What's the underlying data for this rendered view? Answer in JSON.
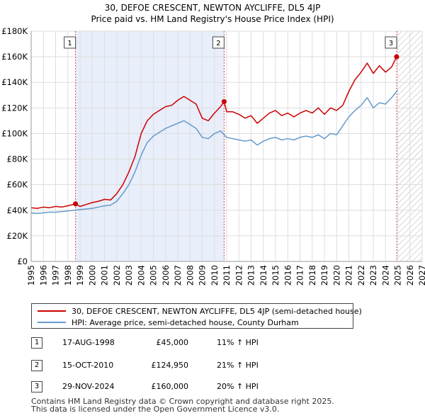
{
  "title_line1": "30, DEFOE CRESCENT, NEWTON AYCLIFFE, DL5 4JP",
  "title_line2": "Price paid vs. HM Land Registry's House Price Index (HPI)",
  "chart_data": {
    "type": "line",
    "title": "30, DEFOE CRESCENT, NEWTON AYCLIFFE, DL5 4JP — Price paid vs. HM Land Registry's House Price Index (HPI)",
    "xlabel": "",
    "ylabel": "",
    "xlim": [
      1995,
      2027
    ],
    "ylim": [
      0,
      180000
    ],
    "y_ticks": [
      0,
      20000,
      40000,
      60000,
      80000,
      100000,
      120000,
      140000,
      160000,
      180000
    ],
    "y_tick_labels": [
      "£0",
      "£20K",
      "£40K",
      "£60K",
      "£80K",
      "£100K",
      "£120K",
      "£140K",
      "£160K",
      "£180K"
    ],
    "x_ticks": [
      1995,
      1996,
      1997,
      1998,
      1999,
      2000,
      2001,
      2002,
      2003,
      2004,
      2005,
      2006,
      2007,
      2008,
      2009,
      2010,
      2011,
      2012,
      2013,
      2014,
      2015,
      2016,
      2017,
      2018,
      2019,
      2020,
      2021,
      2022,
      2023,
      2024,
      2025,
      2026,
      2027
    ],
    "x_tick_labels": [
      "1995",
      "1996",
      "1997",
      "1998",
      "1999",
      "2000",
      "2001",
      "2002",
      "2003",
      "2004",
      "2005",
      "2006",
      "2007",
      "2008",
      "2009",
      "2010",
      "2011",
      "2012",
      "2013",
      "2014",
      "2015",
      "2016",
      "2017",
      "2018",
      "2019",
      "2020",
      "2021",
      "2022",
      "2023",
      "2024",
      "2025",
      "2026",
      "2027"
    ],
    "grid": true,
    "shaded_region": [
      1998.63,
      2010.79
    ],
    "future_hatch_from": 2025.0,
    "series": [
      {
        "name": "30, DEFOE CRESCENT, NEWTON AYCLIFFE, DL5 4JP (semi-detached house)",
        "color": "#cc0000",
        "x": [
          1995.0,
          1995.5,
          1996.0,
          1996.5,
          1997.0,
          1997.5,
          1998.0,
          1998.63,
          1999.0,
          1999.5,
          2000.0,
          2000.5,
          2001.0,
          2001.5,
          2002.0,
          2002.5,
          2003.0,
          2003.5,
          2004.0,
          2004.5,
          2005.0,
          2005.5,
          2006.0,
          2006.5,
          2007.0,
          2007.5,
          2008.0,
          2008.5,
          2009.0,
          2009.5,
          2010.0,
          2010.5,
          2010.79,
          2011.0,
          2011.5,
          2012.0,
          2012.5,
          2013.0,
          2013.5,
          2014.0,
          2014.5,
          2015.0,
          2015.5,
          2016.0,
          2016.5,
          2017.0,
          2017.5,
          2018.0,
          2018.5,
          2019.0,
          2019.5,
          2020.0,
          2020.5,
          2021.0,
          2021.5,
          2022.0,
          2022.5,
          2023.0,
          2023.5,
          2024.0,
          2024.5,
          2024.91
        ],
        "values": [
          42000,
          41500,
          42500,
          42000,
          43000,
          42500,
          43500,
          45000,
          43000,
          44500,
          46000,
          47000,
          48500,
          48000,
          53000,
          60000,
          70000,
          82000,
          100000,
          110000,
          115000,
          118000,
          121000,
          122000,
          126000,
          129000,
          126000,
          123000,
          112000,
          110000,
          116000,
          121000,
          124950,
          117000,
          117000,
          115000,
          112000,
          114000,
          108000,
          112000,
          116000,
          118000,
          114000,
          116000,
          113000,
          116000,
          118000,
          116000,
          120000,
          115000,
          120000,
          118000,
          122000,
          133000,
          142000,
          148000,
          155000,
          147000,
          153000,
          148000,
          152000,
          160000
        ]
      },
      {
        "name": "HPI: Average price, semi-detached house, County Durham",
        "color": "#6699cc",
        "x": [
          1995.0,
          1995.5,
          1996.0,
          1996.5,
          1997.0,
          1997.5,
          1998.0,
          1998.5,
          1999.0,
          1999.5,
          2000.0,
          2000.5,
          2001.0,
          2001.5,
          2002.0,
          2002.5,
          2003.0,
          2003.5,
          2004.0,
          2004.5,
          2005.0,
          2005.5,
          2006.0,
          2006.5,
          2007.0,
          2007.5,
          2008.0,
          2008.5,
          2009.0,
          2009.5,
          2010.0,
          2010.5,
          2011.0,
          2011.5,
          2012.0,
          2012.5,
          2013.0,
          2013.5,
          2014.0,
          2014.5,
          2015.0,
          2015.5,
          2016.0,
          2016.5,
          2017.0,
          2017.5,
          2018.0,
          2018.5,
          2019.0,
          2019.5,
          2020.0,
          2020.5,
          2021.0,
          2021.5,
          2022.0,
          2022.5,
          2023.0,
          2023.5,
          2024.0,
          2024.5,
          2025.0
        ],
        "values": [
          38000,
          37500,
          38000,
          38500,
          38500,
          39000,
          39500,
          40000,
          40500,
          41000,
          41500,
          42500,
          43500,
          44000,
          47000,
          53000,
          60000,
          70000,
          83000,
          93000,
          98000,
          101000,
          104000,
          106000,
          108000,
          110000,
          107000,
          104000,
          97000,
          96000,
          100000,
          102000,
          97000,
          96000,
          95000,
          94000,
          95000,
          91000,
          94000,
          96000,
          97000,
          95000,
          96000,
          95000,
          97000,
          98000,
          97000,
          99000,
          96000,
          100000,
          99000,
          106000,
          113000,
          118000,
          122000,
          128000,
          120000,
          124000,
          123000,
          128000,
          134000
        ]
      }
    ],
    "markers": [
      {
        "label": "1",
        "x": 1998.63,
        "y": 45000
      },
      {
        "label": "2",
        "x": 2010.79,
        "y": 124950
      },
      {
        "label": "3",
        "x": 2024.91,
        "y": 160000
      }
    ]
  },
  "legend": {
    "items": [
      {
        "label": "30, DEFOE CRESCENT, NEWTON AYCLIFFE, DL5 4JP (semi-detached house)",
        "color": "#cc0000"
      },
      {
        "label": "HPI: Average price, semi-detached house, County Durham",
        "color": "#6699cc"
      }
    ]
  },
  "transactions": [
    {
      "num": "1",
      "date": "17-AUG-1998",
      "price": "£45,000",
      "hpi": "11% ↑ HPI"
    },
    {
      "num": "2",
      "date": "15-OCT-2010",
      "price": "£124,950",
      "hpi": "21% ↑ HPI"
    },
    {
      "num": "3",
      "date": "29-NOV-2024",
      "price": "£160,000",
      "hpi": "20% ↑ HPI"
    }
  ],
  "footer": {
    "line1": "Contains HM Land Registry data © Crown copyright and database right 2025.",
    "line2": "This data is licensed under the Open Government Licence v3.0."
  }
}
